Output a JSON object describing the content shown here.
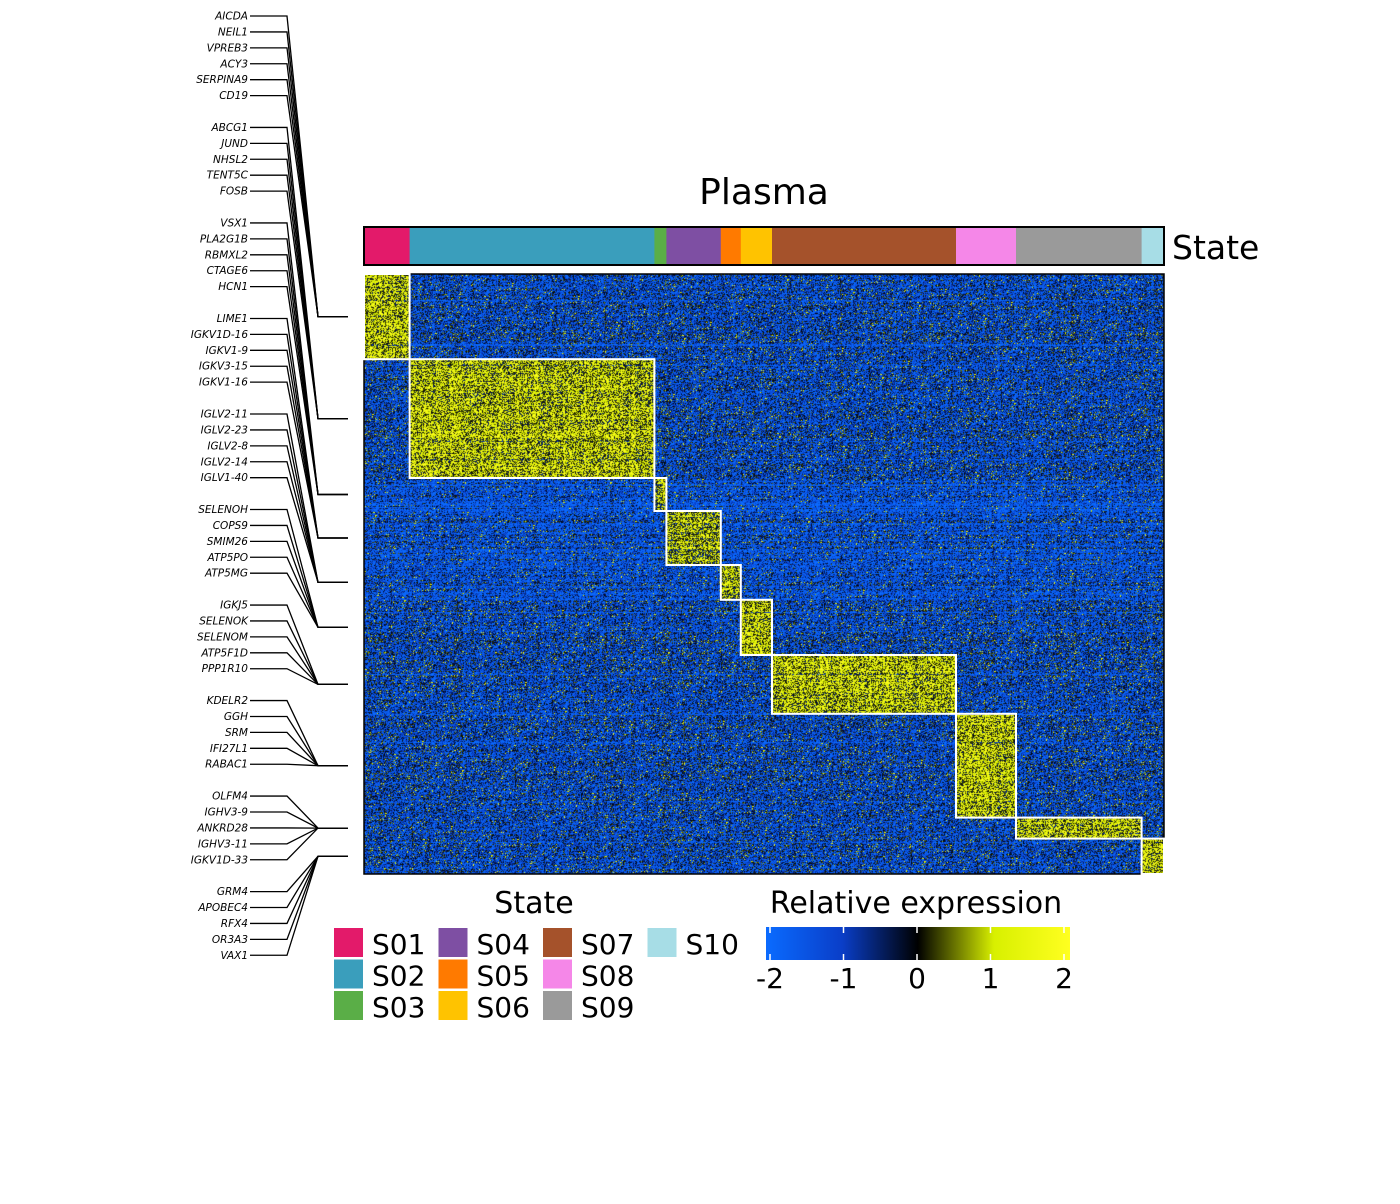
{
  "chart_data": {
    "type": "heatmap",
    "title": "Plasma",
    "annotation_track_label": "State",
    "legend_state": {
      "title": "State",
      "entries": [
        {
          "label": "S01",
          "color": "#E31A6A"
        },
        {
          "label": "S02",
          "color": "#3A9EBC"
        },
        {
          "label": "S03",
          "color": "#5AAE47"
        },
        {
          "label": "S04",
          "color": "#7E4FA3"
        },
        {
          "label": "S05",
          "color": "#FF7A00"
        },
        {
          "label": "S06",
          "color": "#FFC300"
        },
        {
          "label": "S07",
          "color": "#A5522B"
        },
        {
          "label": "S08",
          "color": "#F587E8"
        },
        {
          "label": "S09",
          "color": "#9A9A9A"
        },
        {
          "label": "S10",
          "color": "#A7DDE6"
        }
      ]
    },
    "legend_expression": {
      "title": "Relative expression",
      "min": -2,
      "max": 2,
      "ticks": [
        "-2",
        "-1",
        "0",
        "1",
        "2"
      ],
      "colors": [
        "#0A6BFF",
        "#0A3EC8",
        "#000000",
        "#D8F000",
        "#FFFF20"
      ]
    },
    "column_groups": [
      {
        "state": "S01",
        "fraction": 0.057
      },
      {
        "state": "S02",
        "fraction": 0.306
      },
      {
        "state": "S03",
        "fraction": 0.015
      },
      {
        "state": "S04",
        "fraction": 0.068
      },
      {
        "state": "S05",
        "fraction": 0.025
      },
      {
        "state": "S06",
        "fraction": 0.039
      },
      {
        "state": "S07",
        "fraction": 0.23
      },
      {
        "state": "S08",
        "fraction": 0.075
      },
      {
        "state": "S09",
        "fraction": 0.157
      },
      {
        "state": "S10",
        "fraction": 0.028
      }
    ],
    "row_groups": [
      {
        "state": "S01",
        "fraction": 0.142
      },
      {
        "state": "S02",
        "fraction": 0.198
      },
      {
        "state": "S03",
        "fraction": 0.055
      },
      {
        "state": "S04",
        "fraction": 0.09
      },
      {
        "state": "S05",
        "fraction": 0.058
      },
      {
        "state": "S06",
        "fraction": 0.092
      },
      {
        "state": "S07",
        "fraction": 0.098
      },
      {
        "state": "S08",
        "fraction": 0.173
      },
      {
        "state": "S09",
        "fraction": 0.035
      },
      {
        "state": "S10",
        "fraction": 0.059
      }
    ],
    "gene_labels": [
      [
        "AICDA",
        "NEIL1",
        "VPREB3",
        "ACY3",
        "SERPINA9",
        "CD19"
      ],
      [
        "ABCG1",
        "JUND",
        "NHSL2",
        "TENT5C",
        "FOSB"
      ],
      [
        "VSX1",
        "PLA2G1B",
        "RBMXL2",
        "CTAGE6",
        "HCN1"
      ],
      [
        "LIME1",
        "IGKV1D-16",
        "IGKV1-9",
        "IGKV3-15",
        "IGKV1-16"
      ],
      [
        "IGLV2-11",
        "IGLV2-23",
        "IGLV2-8",
        "IGLV2-14",
        "IGLV1-40"
      ],
      [
        "SELENOH",
        "COPS9",
        "SMIM26",
        "ATP5PO",
        "ATP5MG"
      ],
      [
        "IGKJ5",
        "SELENOK",
        "SELENOM",
        "ATP5F1D",
        "PPP1R10"
      ],
      [
        "KDELR2",
        "GGH",
        "SRM",
        "IFI27L1",
        "RABAC1"
      ],
      [
        "OLFM4",
        "IGHV3-9",
        "ANKRD28",
        "IGHV3-11",
        "IGKV1D-33"
      ],
      [
        "GRM4",
        "APOBEC4",
        "RFX4",
        "OR3A3",
        "VAX1"
      ]
    ]
  }
}
